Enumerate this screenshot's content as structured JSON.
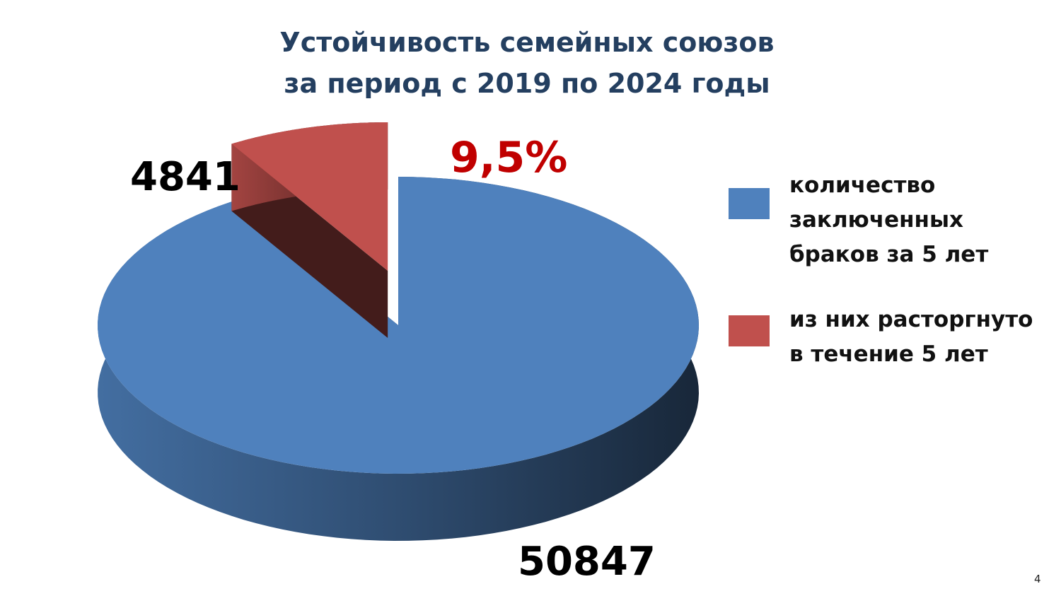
{
  "chart_data": {
    "type": "pie",
    "title": [
      "Устойчивость семейных союзов",
      "за период с 2019 по 2024 годы"
    ],
    "categories": [
      "количество заключенных браков за 5 лет",
      "из них расторгнуто в течение 5 лет"
    ],
    "values": [
      50847,
      4841
    ],
    "colors": [
      "#4f81bd",
      "#c0504d"
    ],
    "annotation": "9,5%",
    "legend": "right"
  },
  "page_number": 4
}
